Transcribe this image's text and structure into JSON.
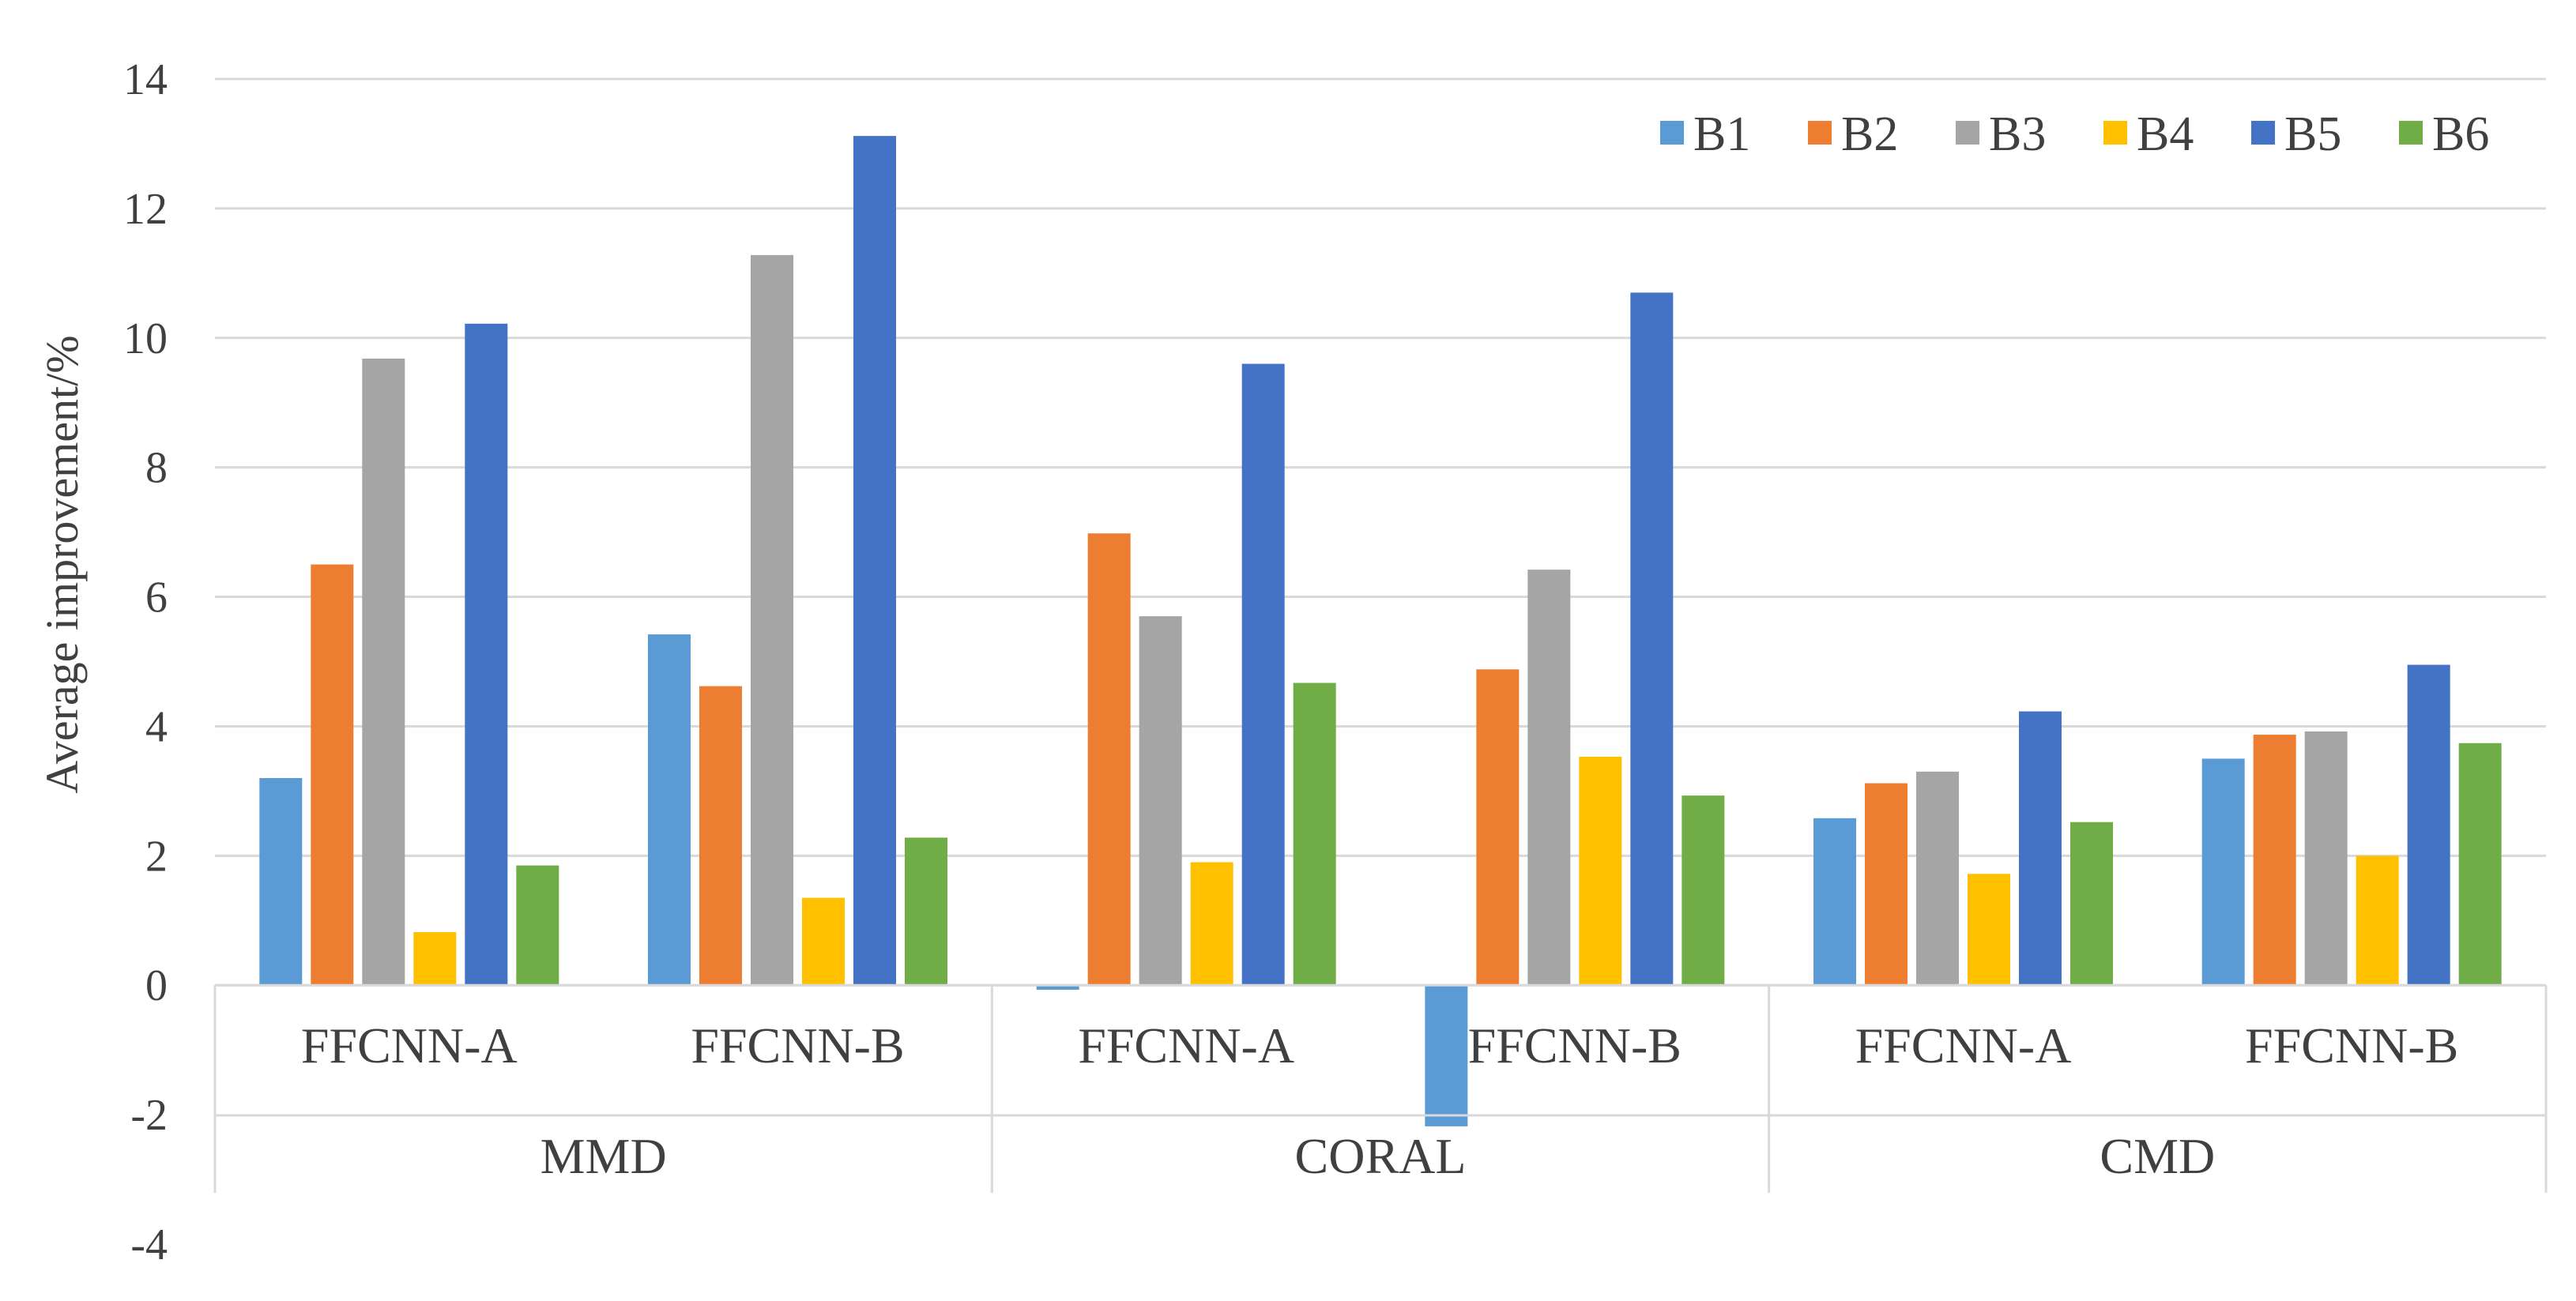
{
  "chart_data": {
    "type": "bar",
    "title": "",
    "xlabel": "",
    "ylabel": "Average improvement/%",
    "ylim": [
      -4,
      14
    ],
    "yticks": [
      -4,
      -2,
      0,
      2,
      4,
      6,
      8,
      10,
      12,
      14
    ],
    "grid": true,
    "legend_position": "top-right",
    "groups": [
      {
        "label": "MMD",
        "categories": [
          "FFCNN-A",
          "FFCNN-B"
        ]
      },
      {
        "label": "CORAL",
        "categories": [
          "FFCNN-A",
          "FFCNN-B"
        ]
      },
      {
        "label": "CMD",
        "categories": [
          "FFCNN-A",
          "FFCNN-B"
        ]
      }
    ],
    "categories": [
      "FFCNN-A",
      "FFCNN-B",
      "FFCNN-A",
      "FFCNN-B",
      "FFCNN-A",
      "FFCNN-B"
    ],
    "series": [
      {
        "name": "B1",
        "color": "#5b9bd5",
        "values": [
          3.2,
          5.42,
          -0.07,
          -2.18,
          2.58,
          3.5
        ]
      },
      {
        "name": "B2",
        "color": "#ed7d31",
        "values": [
          6.5,
          4.62,
          6.98,
          4.88,
          3.12,
          3.87
        ]
      },
      {
        "name": "B3",
        "color": "#a5a5a5",
        "values": [
          9.68,
          11.28,
          5.7,
          6.42,
          3.3,
          3.92
        ]
      },
      {
        "name": "B4",
        "color": "#ffc000",
        "values": [
          0.82,
          1.35,
          1.9,
          3.53,
          1.72,
          2.0
        ]
      },
      {
        "name": "B5",
        "color": "#4472c4",
        "values": [
          10.22,
          13.12,
          9.6,
          10.7,
          4.23,
          4.95
        ]
      },
      {
        "name": "B6",
        "color": "#70ad47",
        "values": [
          1.85,
          2.28,
          4.67,
          2.93,
          2.52,
          3.74
        ]
      }
    ]
  }
}
